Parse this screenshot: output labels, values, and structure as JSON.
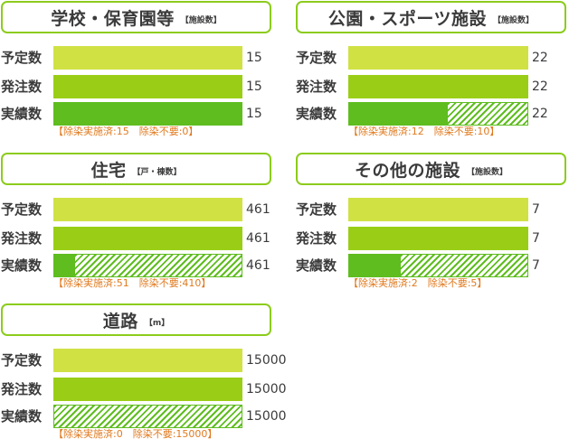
{
  "colors": {
    "planned": "#d0e144",
    "ordered": "#9ace16",
    "actual_done": "#5fbd1f",
    "actual_unneeded_hatch": "#5fbd1f",
    "header_border": "#8ccc1c",
    "note": "#e07a1f"
  },
  "chart_data": [
    {
      "type": "bar",
      "title": "学校・保育園等",
      "unit": "【施設数】",
      "categories": [
        "予定数",
        "発注数",
        "実績数"
      ],
      "values": [
        15,
        15,
        15
      ],
      "actual_breakdown": {
        "done": 15,
        "unneeded": 0
      },
      "value_labels": [
        "15",
        "15",
        "15"
      ],
      "note": "【除染実施済:15　除染不要:0】"
    },
    {
      "type": "bar",
      "title": "公園・スポーツ施設",
      "unit": "【施設数】",
      "categories": [
        "予定数",
        "発注数",
        "実績数"
      ],
      "values": [
        22,
        22,
        22
      ],
      "actual_breakdown": {
        "done": 12,
        "unneeded": 10
      },
      "value_labels": [
        "22",
        "22",
        "22"
      ],
      "note": "【除染実施済:12　除染不要:10】"
    },
    {
      "type": "bar",
      "title": "住宅",
      "unit": "【戸・棟数】",
      "categories": [
        "予定数",
        "発注数",
        "実績数"
      ],
      "values": [
        461,
        461,
        461
      ],
      "actual_breakdown": {
        "done": 51,
        "unneeded": 410
      },
      "value_labels": [
        "461",
        "461",
        "461"
      ],
      "note": "【除染実施済:51　除染不要:410】"
    },
    {
      "type": "bar",
      "title": "その他の施設",
      "unit": "【施設数】",
      "categories": [
        "予定数",
        "発注数",
        "実績数"
      ],
      "values": [
        7,
        7,
        7
      ],
      "actual_breakdown": {
        "done": 2,
        "unneeded": 5
      },
      "value_labels": [
        "7",
        "7",
        "7"
      ],
      "note": "【除染実施済:2　除染不要:5】"
    },
    {
      "type": "bar",
      "title": "道路",
      "unit": "【m】",
      "categories": [
        "予定数",
        "発注数",
        "実績数"
      ],
      "values": [
        15000,
        15000,
        15000
      ],
      "actual_breakdown": {
        "done": 0,
        "unneeded": 15000
      },
      "value_labels": [
        "15000",
        "15000",
        "15000"
      ],
      "note": "【除染実施済:0　除染不要:15000】"
    }
  ]
}
